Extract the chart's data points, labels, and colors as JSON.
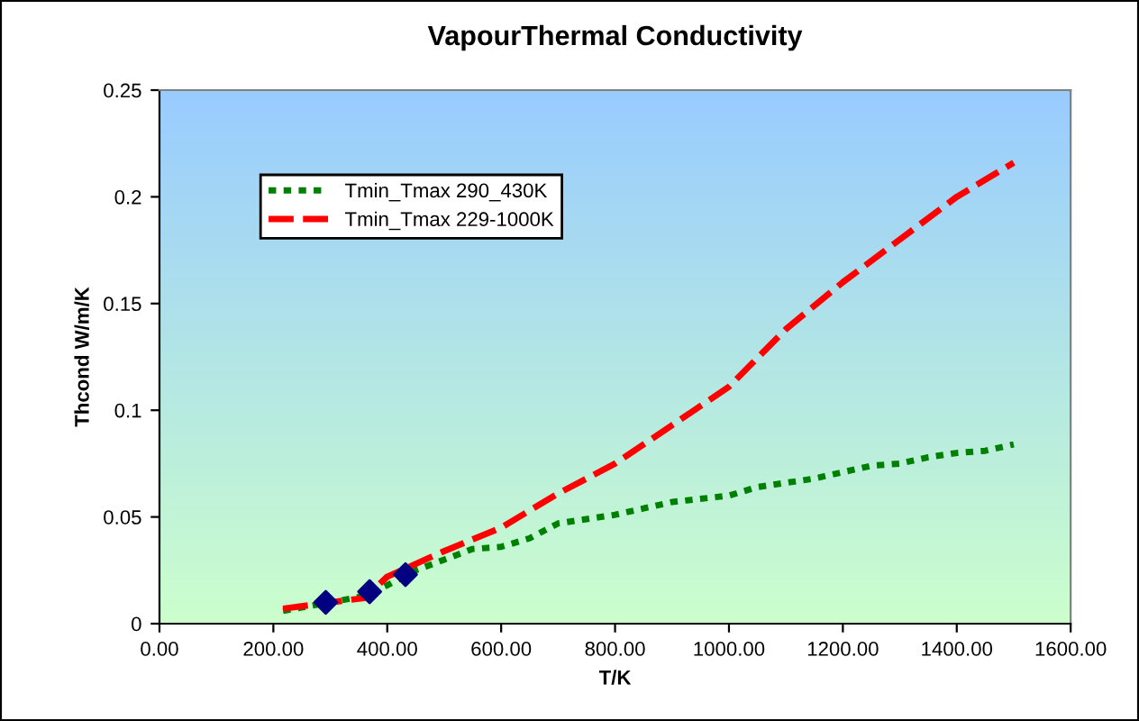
{
  "chart_data": {
    "type": "line",
    "title": "VapourThermal Conductivity",
    "xlabel": "T/K",
    "ylabel": "Thcond W/m/K",
    "series": [
      {
        "name": "Tmin_Tmax 290_430K",
        "color": "#008000",
        "line_style": "dotted",
        "x": [
          217,
          300,
          360,
          400,
          450,
          500,
          550,
          600,
          650,
          700,
          750,
          800,
          850,
          900,
          1000,
          1050,
          1100,
          1150,
          1200,
          1250,
          1300,
          1350,
          1400,
          1450,
          1500
        ],
        "values": [
          0.006,
          0.01,
          0.013,
          0.018,
          0.025,
          0.03,
          0.035,
          0.036,
          0.04,
          0.047,
          0.049,
          0.051,
          0.054,
          0.057,
          0.06,
          0.064,
          0.066,
          0.068,
          0.071,
          0.074,
          0.075,
          0.078,
          0.08,
          0.081,
          0.084
        ]
      },
      {
        "name": "Tmin_Tmax 229-1000K",
        "color": "#ff0000",
        "line_style": "dashed",
        "x": [
          217,
          300,
          360,
          400,
          500,
          600,
          700,
          800,
          900,
          1000,
          1100,
          1200,
          1300,
          1400,
          1500
        ],
        "values": [
          0.007,
          0.01,
          0.012,
          0.022,
          0.034,
          0.045,
          0.061,
          0.075,
          0.093,
          0.111,
          0.138,
          0.16,
          0.18,
          0.2,
          0.216
        ]
      },
      {
        "type": "scatter",
        "color": "#000080",
        "marker": "diamond",
        "x": [
          292,
          369,
          432
        ],
        "values": [
          0.01,
          0.015,
          0.023
        ]
      }
    ],
    "xlim": [
      0,
      1600
    ],
    "ylim": [
      0,
      0.25
    ],
    "xticks": [
      {
        "value": 0,
        "label": "0.00"
      },
      {
        "value": 200,
        "label": "200.00"
      },
      {
        "value": 400,
        "label": "400.00"
      },
      {
        "value": 600,
        "label": "600.00"
      },
      {
        "value": 800,
        "label": "800.00"
      },
      {
        "value": 1000,
        "label": "1000.00"
      },
      {
        "value": 1200,
        "label": "1200.00"
      },
      {
        "value": 1400,
        "label": "1400.00"
      },
      {
        "value": 1600,
        "label": "1600.00"
      }
    ],
    "yticks": [
      0,
      0.05,
      0.1,
      0.15,
      0.2,
      0.25
    ],
    "grid": false,
    "legend": "top left"
  }
}
